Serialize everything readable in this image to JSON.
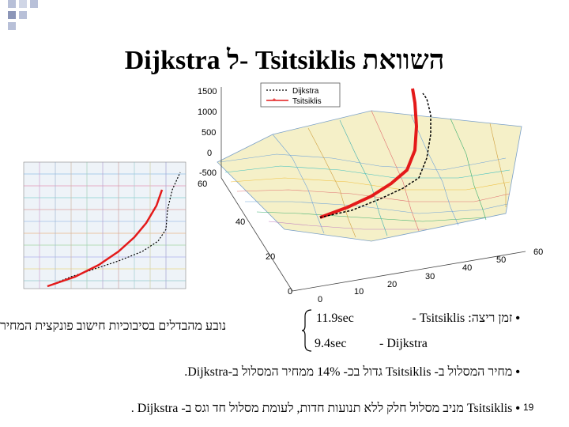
{
  "slide": {
    "title": "השוואת Tsitsiklis -ל Dijkstra",
    "page_number": "19"
  },
  "plot": {
    "legend": [
      "Dijkstra",
      "Tsitsiklis"
    ],
    "z_ticks": [
      "1500",
      "1000",
      "500",
      "0",
      "-500"
    ],
    "y_ticks": [
      "60",
      "40",
      "20",
      "0"
    ],
    "x_ticks": [
      "0",
      "10",
      "20",
      "30",
      "40",
      "50",
      "60"
    ],
    "colors": {
      "dijkstra": "#000000",
      "tsitsiklis": "#e41a1a"
    }
  },
  "body": {
    "runtime_label": "זמן ריצה: Tsitsiklis -",
    "runtime_tsitsiklis": "11.9sec",
    "runtime_dijkstra_label": "- Dijkstra",
    "runtime_dijkstra": "9.4sec",
    "runtime_note": "נובע מהבדלים בסיבוכיות חישוב פונקצית המחיר",
    "cost_line": "מחיר המסלול ב- Tsitsiklis גדול בכ- 14% ממחיר המסלול ב-Dijkstra.",
    "path_line": "Tsitsiklis מניב מסלול חלק ללא תנועות חדות, לעומת מסלול חד וגס ב- Dijkstra ."
  }
}
